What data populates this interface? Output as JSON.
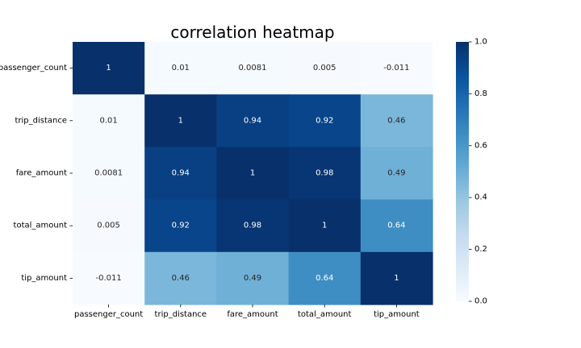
{
  "chart_data": {
    "type": "heatmap",
    "title": "correlation heatmap",
    "xlabel": "",
    "ylabel": "",
    "x_categories": [
      "passenger_count",
      "trip_distance",
      "fare_amount",
      "total_amount",
      "tip_amount"
    ],
    "y_categories": [
      "passenger_count",
      "trip_distance",
      "fare_amount",
      "total_amount",
      "tip_amount"
    ],
    "values": [
      [
        1,
        0.01,
        0.0081,
        0.005,
        -0.011
      ],
      [
        0.01,
        1,
        0.94,
        0.92,
        0.46
      ],
      [
        0.0081,
        0.94,
        1,
        0.98,
        0.49
      ],
      [
        0.005,
        0.92,
        0.98,
        1,
        0.64
      ],
      [
        -0.011,
        0.46,
        0.49,
        0.64,
        1
      ]
    ],
    "cell_labels": [
      [
        "1",
        "0.01",
        "0.0081",
        "0.005",
        "-0.011"
      ],
      [
        "0.01",
        "1",
        "0.94",
        "0.92",
        "0.46"
      ],
      [
        "0.0081",
        "0.94",
        "1",
        "0.98",
        "0.49"
      ],
      [
        "0.005",
        "0.92",
        "0.98",
        "1",
        "0.64"
      ],
      [
        "-0.011",
        "0.46",
        "0.49",
        "0.64",
        "1"
      ]
    ],
    "colormap": "Blues",
    "colorbar": {
      "range": [
        0.0,
        1.0
      ],
      "ticks": [
        0.0,
        0.2,
        0.4,
        0.6,
        0.8,
        1.0
      ],
      "tick_labels": [
        "0.0",
        "0.2",
        "0.4",
        "0.6",
        "0.8",
        "1.0"
      ],
      "placement": "right"
    },
    "grid": false
  }
}
